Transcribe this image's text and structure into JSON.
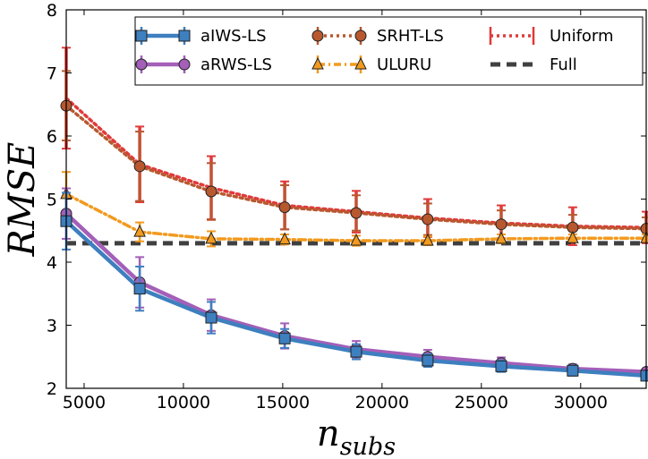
{
  "chart_data": {
    "type": "line",
    "xlabel": "n",
    "xlabel_sub": "subs",
    "ylabel": "RMSE",
    "xlim": [
      4100,
      33300
    ],
    "ylim": [
      2,
      8
    ],
    "xticks": [
      5000,
      10000,
      15000,
      20000,
      25000,
      30000
    ],
    "yticks": [
      2,
      3,
      4,
      5,
      6,
      7,
      8
    ],
    "grid": false,
    "legend_position": "top",
    "x": [
      4100,
      7800,
      11400,
      15100,
      18700,
      22300,
      26000,
      29600,
      33300
    ],
    "series": [
      {
        "name": "aIWS-LS",
        "color": "#3e7fbf",
        "marker": "square",
        "linestyle": "solid",
        "values": [
          4.65,
          3.58,
          3.12,
          2.79,
          2.58,
          2.44,
          2.35,
          2.28,
          2.2
        ],
        "err": [
          0.45,
          0.35,
          0.25,
          0.15,
          0.12,
          0.1,
          0.09,
          0.08,
          0.06
        ]
      },
      {
        "name": "aRWS-LS",
        "color": "#a45fb8",
        "marker": "circle",
        "linestyle": "solid",
        "values": [
          4.77,
          3.68,
          3.16,
          2.83,
          2.62,
          2.5,
          2.4,
          2.31,
          2.26
        ],
        "err": [
          0.4,
          0.4,
          0.25,
          0.2,
          0.13,
          0.11,
          0.09,
          0.07,
          0.05
        ]
      },
      {
        "name": "SRHT-LS",
        "color": "#b8582f",
        "marker": "circle",
        "linestyle": "dotted",
        "values": [
          6.48,
          5.52,
          5.12,
          4.87,
          4.78,
          4.68,
          4.6,
          4.55,
          4.53
        ],
        "err": [
          0.55,
          0.55,
          0.45,
          0.35,
          0.28,
          0.25,
          0.22,
          0.2,
          0.18
        ]
      },
      {
        "name": "ULURU",
        "color": "#f29a1f",
        "marker": "triangle",
        "linestyle": "dashdot",
        "values": [
          5.08,
          4.48,
          4.37,
          4.36,
          4.34,
          4.34,
          4.37,
          4.38,
          4.38
        ],
        "err": [
          0.35,
          0.15,
          0.12,
          0.08,
          0.08,
          0.07,
          0.07,
          0.06,
          0.06
        ]
      },
      {
        "name": "Uniform",
        "color": "#e03a3a",
        "marker": "none",
        "linestyle": "dotted",
        "values": [
          6.6,
          5.55,
          5.18,
          4.9,
          4.8,
          4.7,
          4.62,
          4.57,
          4.55
        ],
        "err": [
          0.8,
          0.6,
          0.5,
          0.38,
          0.33,
          0.3,
          0.28,
          0.3,
          0.25
        ]
      },
      {
        "name": "Full",
        "color": "#404040",
        "marker": "none",
        "linestyle": "dashed",
        "values": [
          4.3,
          4.3,
          4.3,
          4.3,
          4.3,
          4.3,
          4.3,
          4.3,
          4.3
        ]
      }
    ]
  }
}
